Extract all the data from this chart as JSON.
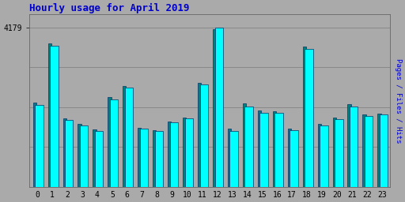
{
  "title": "Hourly usage for April 2019",
  "hours": [
    0,
    1,
    2,
    3,
    4,
    5,
    6,
    7,
    8,
    9,
    10,
    11,
    12,
    13,
    14,
    15,
    16,
    17,
    18,
    19,
    20,
    21,
    22,
    23
  ],
  "max_val": 4179,
  "ytick_val": 4179,
  "green": [
    2200,
    3750,
    1800,
    1650,
    1500,
    2350,
    2650,
    1550,
    1480,
    1720,
    1820,
    2730,
    4120,
    1520,
    2180,
    2000,
    1980,
    1520,
    3680,
    1650,
    1820,
    2160,
    1900,
    1930
  ],
  "cyan": [
    2150,
    3700,
    1760,
    1620,
    1460,
    2300,
    2600,
    1520,
    1460,
    1690,
    1790,
    2690,
    4179,
    1460,
    2100,
    1950,
    1950,
    1480,
    3620,
    1600,
    1780,
    2100,
    1860,
    1890
  ],
  "color_green": "#008080",
  "color_cyan": "#00ffff",
  "color_border": "#003366",
  "bg_color": "#aaaaaa",
  "title_color": "#0000cc",
  "grid_color": "#888888",
  "ylabel_right": "Pages / Files / Hits",
  "ylabel_right_color": "#0000cc"
}
